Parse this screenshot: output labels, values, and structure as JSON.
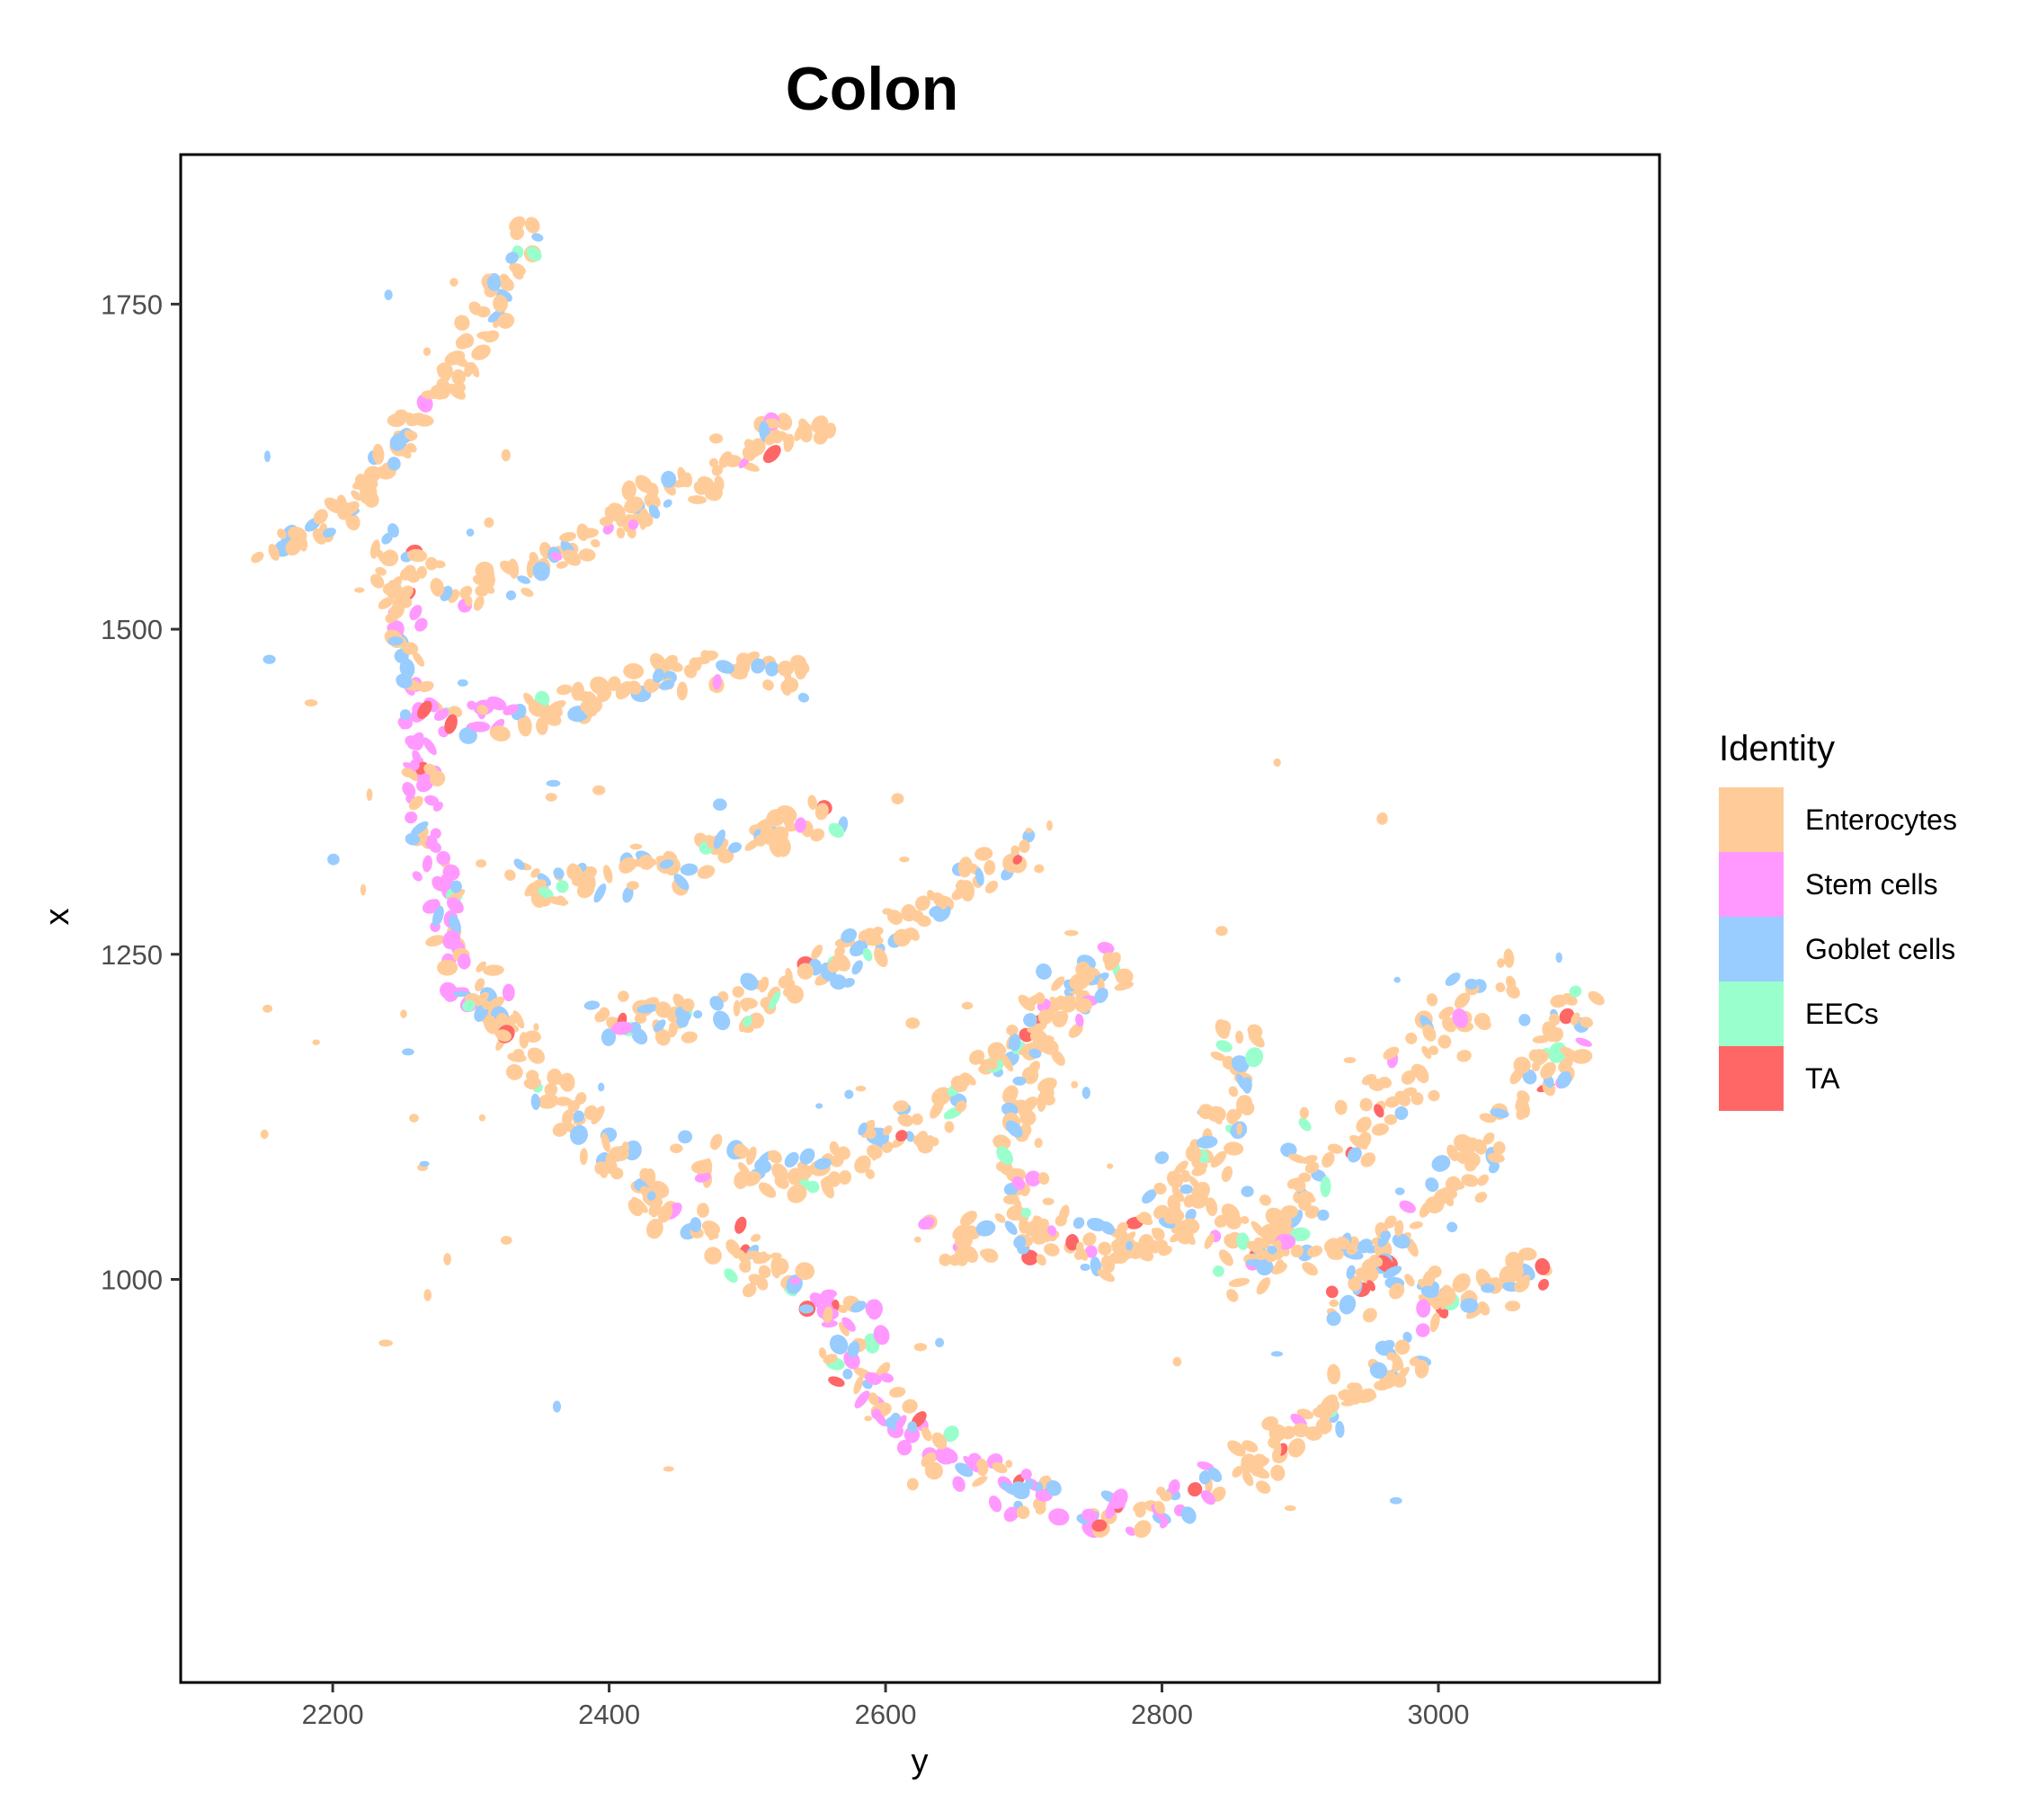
{
  "chart_data": {
    "type": "scatter",
    "title": "Colon",
    "xlabel": "y",
    "ylabel": "x",
    "xlim": [
      2090,
      3160
    ],
    "ylim": [
      690,
      1865
    ],
    "x_ticks": [
      2200,
      2400,
      2600,
      2800,
      3000
    ],
    "y_ticks": [
      1000,
      1250,
      1500,
      1750
    ],
    "grid": false,
    "legend_position": "right",
    "legend_title": "Identity",
    "series": [
      {
        "name": "Enterocytes",
        "color": "#FFCC99"
      },
      {
        "name": "Stem cells",
        "color": "#FF99FF"
      },
      {
        "name": "Goblet cells",
        "color": "#99CCFF"
      },
      {
        "name": "EECs",
        "color": "#99FFCC"
      },
      {
        "name": "TA",
        "color": "#FF6666"
      }
    ],
    "tissue_paths": [
      {
        "id": "arm1",
        "width": 22,
        "points": [
          [
            2150,
            1560
          ],
          [
            2185,
            1575
          ],
          [
            2215,
            1595
          ],
          [
            2235,
            1625
          ],
          [
            2255,
            1650
          ],
          [
            2275,
            1680
          ],
          [
            2295,
            1710
          ],
          [
            2315,
            1745
          ],
          [
            2330,
            1780
          ],
          [
            2340,
            1805
          ]
        ]
      },
      {
        "id": "arm2",
        "width": 28,
        "points": [
          [
            2240,
            1570
          ],
          [
            2265,
            1540
          ],
          [
            2300,
            1525
          ],
          [
            2340,
            1540
          ],
          [
            2380,
            1565
          ],
          [
            2420,
            1590
          ],
          [
            2460,
            1615
          ],
          [
            2500,
            1640
          ],
          [
            2530,
            1655
          ],
          [
            2560,
            1645
          ]
        ]
      },
      {
        "id": "arm3",
        "width": 26,
        "points": [
          [
            2275,
            1430
          ],
          [
            2310,
            1430
          ],
          [
            2345,
            1435
          ],
          [
            2385,
            1445
          ],
          [
            2430,
            1460
          ],
          [
            2470,
            1470
          ],
          [
            2510,
            1470
          ],
          [
            2540,
            1460
          ]
        ]
      },
      {
        "id": "arm4",
        "width": 26,
        "points": [
          [
            2320,
            1310
          ],
          [
            2360,
            1300
          ],
          [
            2400,
            1305
          ],
          [
            2440,
            1315
          ],
          [
            2480,
            1330
          ],
          [
            2520,
            1345
          ],
          [
            2560,
            1360
          ]
        ]
      },
      {
        "id": "arm5",
        "width": 28,
        "points": [
          [
            2380,
            1200
          ],
          [
            2430,
            1200
          ],
          [
            2470,
            1200
          ],
          [
            2510,
            1215
          ],
          [
            2550,
            1235
          ],
          [
            2590,
            1255
          ],
          [
            2620,
            1280
          ],
          [
            2650,
            1300
          ],
          [
            2680,
            1320
          ],
          [
            2700,
            1335
          ]
        ]
      },
      {
        "id": "arm6",
        "width": 30,
        "points": [
          [
            2460,
            1100
          ],
          [
            2500,
            1080
          ],
          [
            2540,
            1080
          ],
          [
            2580,
            1090
          ],
          [
            2610,
            1110
          ],
          [
            2650,
            1140
          ],
          [
            2680,
            1170
          ],
          [
            2720,
            1200
          ],
          [
            2750,
            1230
          ],
          [
            2770,
            1250
          ]
        ]
      },
      {
        "id": "crypt1",
        "width": 34,
        "points": [
          [
            2720,
            1020
          ],
          [
            2700,
            1060
          ],
          [
            2700,
            1110
          ],
          [
            2705,
            1160
          ],
          [
            2720,
            1210
          ],
          [
            2745,
            1240
          ]
        ]
      },
      {
        "id": "crypt2",
        "width": 36,
        "points": [
          [
            2760,
            1010
          ],
          [
            2790,
            1040
          ],
          [
            2820,
            1080
          ],
          [
            2845,
            1120
          ],
          [
            2860,
            1160
          ],
          [
            2850,
            1190
          ]
        ]
      },
      {
        "id": "crypt3",
        "width": 40,
        "points": [
          [
            2860,
            1000
          ],
          [
            2880,
            1040
          ],
          [
            2905,
            1080
          ],
          [
            2930,
            1110
          ],
          [
            2960,
            1140
          ],
          [
            2990,
            1170
          ],
          [
            3020,
            1210
          ],
          [
            3040,
            1230
          ]
        ]
      },
      {
        "id": "crypt4",
        "width": 34,
        "points": [
          [
            2930,
            980
          ],
          [
            2960,
            1020
          ],
          [
            2990,
            1050
          ],
          [
            3020,
            1080
          ],
          [
            3050,
            1120
          ],
          [
            3080,
            1160
          ],
          [
            3100,
            1200
          ],
          [
            3100,
            1230
          ]
        ]
      },
      {
        "id": "web1",
        "width": 34,
        "points": [
          [
            2640,
            1030
          ],
          [
            2700,
            1040
          ],
          [
            2760,
            1030
          ],
          [
            2820,
            1040
          ],
          [
            2870,
            1030
          ],
          [
            2920,
            1020
          ]
        ]
      },
      {
        "id": "web2",
        "width": 30,
        "points": [
          [
            2920,
            1020
          ],
          [
            2960,
            1000
          ],
          [
            3010,
            980
          ],
          [
            3050,
            990
          ],
          [
            3080,
            1010
          ]
        ]
      },
      {
        "id": "lower1",
        "width": 30,
        "points": [
          [
            2300,
            1240
          ],
          [
            2330,
            1180
          ],
          [
            2370,
            1130
          ],
          [
            2410,
            1080
          ],
          [
            2460,
            1040
          ],
          [
            2510,
            1010
          ],
          [
            2560,
            980
          ],
          [
            2600,
            960
          ]
        ]
      },
      {
        "id": "lower2",
        "width": 30,
        "points": [
          [
            2560,
            950
          ],
          [
            2600,
            900
          ],
          [
            2650,
            860
          ],
          [
            2700,
            830
          ],
          [
            2760,
            820
          ],
          [
            2820,
            830
          ],
          [
            2870,
            860
          ],
          [
            2920,
            900
          ],
          [
            2960,
            930
          ],
          [
            3000,
            950
          ]
        ]
      },
      {
        "id": "left-wall",
        "width": 26,
        "points": [
          [
            2240,
            1550
          ],
          [
            2250,
            1500
          ],
          [
            2260,
            1450
          ],
          [
            2265,
            1400
          ],
          [
            2270,
            1350
          ],
          [
            2275,
            1300
          ],
          [
            2285,
            1260
          ],
          [
            2300,
            1220
          ]
        ]
      }
    ],
    "annotation": ""
  }
}
